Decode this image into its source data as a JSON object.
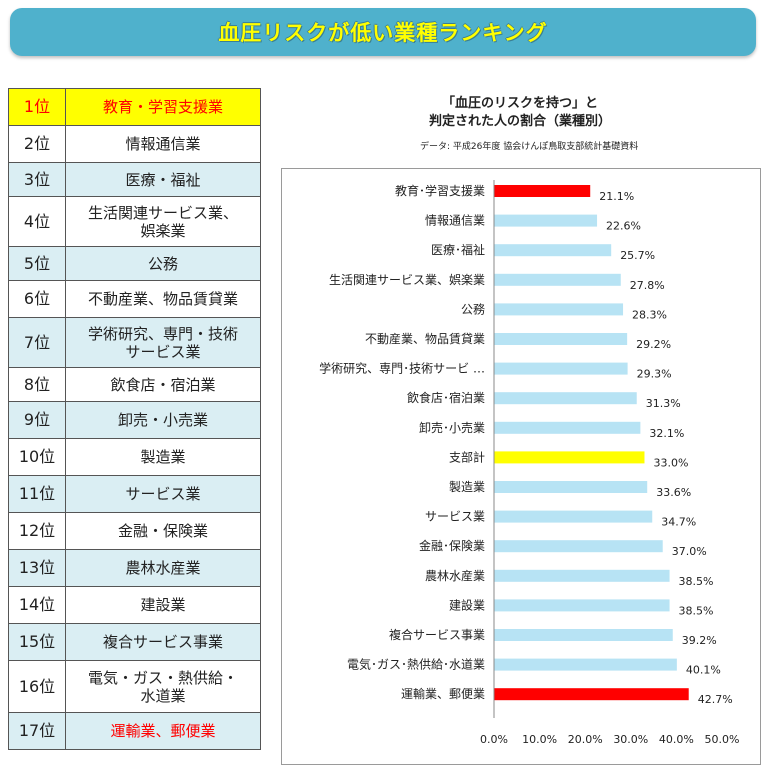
{
  "header": {
    "title": "血圧リスクが低い業種ランキング"
  },
  "ranking": [
    {
      "rank": "1位",
      "name": [
        "教育・学習支援業"
      ],
      "highlight": "top"
    },
    {
      "rank": "2位",
      "name": [
        "情報通信業"
      ]
    },
    {
      "rank": "3位",
      "name": [
        "医療・福祉"
      ]
    },
    {
      "rank": "4位",
      "name": [
        "生活関連サービス業、",
        "娯楽業"
      ]
    },
    {
      "rank": "5位",
      "name": [
        "公務"
      ]
    },
    {
      "rank": "6位",
      "name": [
        "不動産業、物品賃貸業"
      ]
    },
    {
      "rank": "7位",
      "name": [
        "学術研究、専門・技術",
        "サービス業"
      ]
    },
    {
      "rank": "8位",
      "name": [
        "飲食店・宿泊業"
      ]
    },
    {
      "rank": "9位",
      "name": [
        "卸売・小売業"
      ]
    },
    {
      "rank": "10位",
      "name": [
        "製造業"
      ]
    },
    {
      "rank": "11位",
      "name": [
        "サービス業"
      ]
    },
    {
      "rank": "12位",
      "name": [
        "金融・保険業"
      ]
    },
    {
      "rank": "13位",
      "name": [
        "農林水産業"
      ]
    },
    {
      "rank": "14位",
      "name": [
        "建設業"
      ]
    },
    {
      "rank": "15位",
      "name": [
        "複合サービス事業"
      ]
    },
    {
      "rank": "16位",
      "name": [
        "電気・ガス・熱供給・",
        "水道業"
      ]
    },
    {
      "rank": "17位",
      "name": [
        "運輸業、郵便業"
      ],
      "highlight": "red"
    }
  ],
  "chart_data": {
    "type": "bar",
    "orientation": "horizontal",
    "title_lines": [
      "「血圧のリスクを持つ」と",
      "判定された人の割合（業種別）"
    ],
    "subtitle": "データ: 平成26年度 協会けんぽ鳥取支部統計基礎資料",
    "categories": [
      "教育･学習支援業",
      "情報通信業",
      "医療･福祉",
      "生活関連サービス業、娯楽業",
      "公務",
      "不動産業、物品賃貸業",
      "学術研究、専門･技術サービ …",
      "飲食店･宿泊業",
      "卸売･小売業",
      "支部計",
      "製造業",
      "サービス業",
      "金融･保険業",
      "農林水産業",
      "建設業",
      "複合サービス事業",
      "電気･ガス･熱供給･水道業",
      "運輸業、郵便業"
    ],
    "values": [
      21.1,
      22.6,
      25.7,
      27.8,
      28.3,
      29.2,
      29.3,
      31.3,
      32.1,
      33.0,
      33.6,
      34.7,
      37.0,
      38.5,
      38.5,
      39.2,
      40.1,
      42.7
    ],
    "value_labels": [
      "21.1%",
      "22.6%",
      "25.7%",
      "27.8%",
      "28.3%",
      "29.2%",
      "29.3%",
      "31.3%",
      "32.1%",
      "33.0%",
      "33.6%",
      "34.7%",
      "37.0%",
      "38.5%",
      "38.5%",
      "39.2%",
      "40.1%",
      "42.7%"
    ],
    "bar_colors": [
      "#ff0000",
      "#b7e3f4",
      "#b7e3f4",
      "#b7e3f4",
      "#b7e3f4",
      "#b7e3f4",
      "#b7e3f4",
      "#b7e3f4",
      "#b7e3f4",
      "#ffff00",
      "#b7e3f4",
      "#b7e3f4",
      "#b7e3f4",
      "#b7e3f4",
      "#b7e3f4",
      "#b7e3f4",
      "#b7e3f4",
      "#ff0000"
    ],
    "xlim": [
      0,
      50
    ],
    "xticks": [
      "0.0%",
      "10.0%",
      "20.0%",
      "30.0%",
      "40.0%",
      "50.0%"
    ],
    "grid": false,
    "legend": "none"
  },
  "colors": {
    "banner": "#4fb1cc",
    "banner_text": "#ffff00",
    "row_alt": "#daeef3",
    "highlight_yellow": "#ffff00",
    "highlight_red": "#ff0000"
  }
}
